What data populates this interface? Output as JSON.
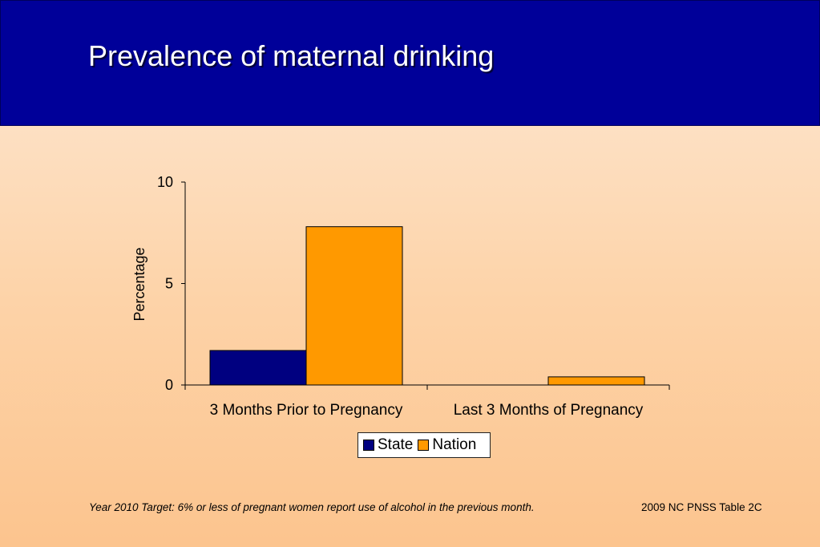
{
  "slide": {
    "title": "Prevalence of maternal drinking",
    "footnote": "Year 2010 Target: 6% or less of pregnant women report use of alcohol in the previous month.",
    "source": "2009 NC PNSS Table 2C"
  },
  "colors": {
    "header_bg": "#000099",
    "state": "#000080",
    "nation": "#ff9900"
  },
  "chart_data": {
    "type": "bar",
    "title": "",
    "xlabel": "",
    "ylabel": "Percentage",
    "ylim": [
      0,
      10
    ],
    "yticks": [
      0,
      5,
      10
    ],
    "categories": [
      "3 Months Prior to Pregnancy",
      "Last 3 Months of Pregnancy"
    ],
    "series": [
      {
        "name": "State",
        "values": [
          1.7,
          0
        ],
        "color": "#000080"
      },
      {
        "name": "Nation",
        "values": [
          7.8,
          0.4
        ],
        "color": "#ff9900"
      }
    ],
    "legend": "bottom-center",
    "grid": false
  }
}
